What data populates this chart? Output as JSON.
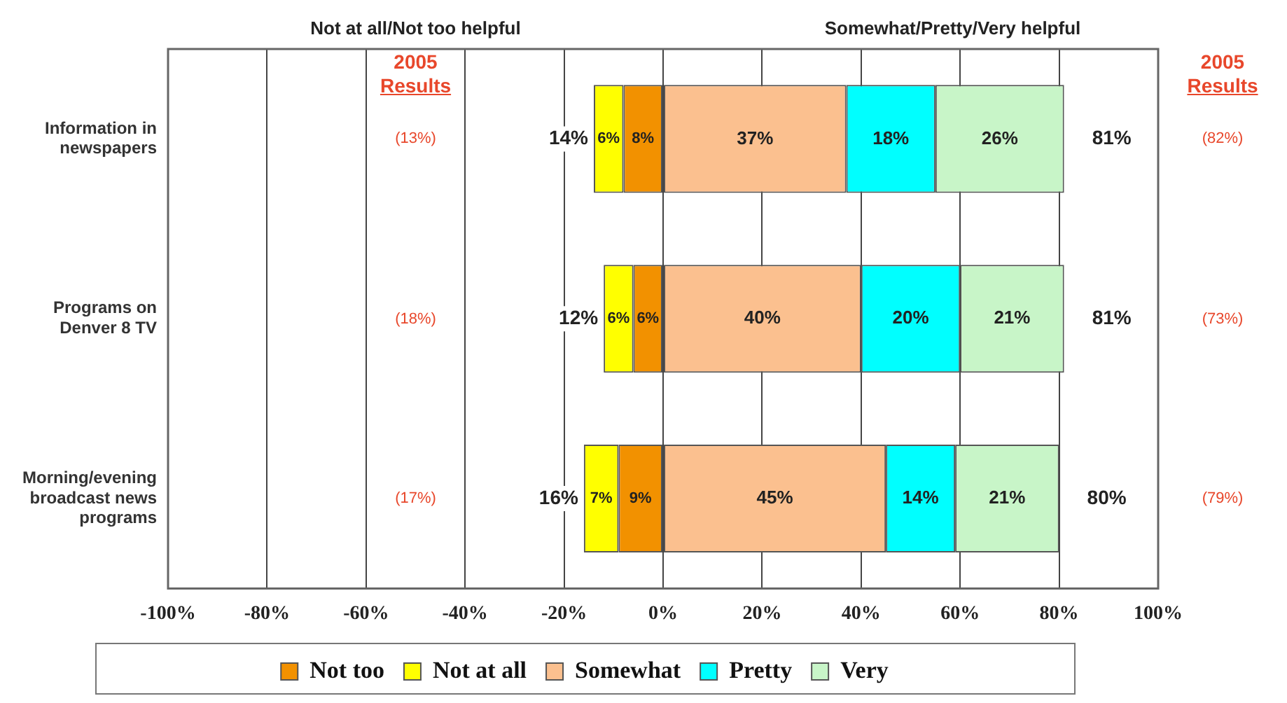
{
  "chart_data": {
    "type": "bar",
    "orientation": "horizontal",
    "categories": [
      "Information in newspapers",
      "Programs on Denver 8 TV",
      "Morning/evening broadcast news programs"
    ],
    "series": [
      {
        "name": "Not too",
        "color": "#f29100",
        "base": [
          -8,
          -6,
          -9
        ],
        "values": [
          8,
          6,
          9
        ],
        "value_labels": [
          "8%",
          "6%",
          "9%"
        ]
      },
      {
        "name": "Not at all",
        "color": "#ffff00",
        "base": [
          -14,
          -12,
          -16
        ],
        "values": [
          6,
          6,
          7
        ],
        "value_labels": [
          "6%",
          "6%",
          "7%"
        ]
      },
      {
        "name": "Somewhat",
        "color": "#fbc08f",
        "base": [
          0,
          0,
          0
        ],
        "values": [
          37,
          40,
          45
        ],
        "value_labels": [
          "37%",
          "40%",
          "45%"
        ]
      },
      {
        "name": "Pretty",
        "color": "#00ffff",
        "base": [
          37,
          40,
          45
        ],
        "values": [
          18,
          20,
          14
        ],
        "value_labels": [
          "18%",
          "20%",
          "14%"
        ]
      },
      {
        "name": "Very",
        "color": "#c8f5c8",
        "base": [
          55,
          60,
          59
        ],
        "values": [
          26,
          21,
          21
        ],
        "value_labels": [
          "26%",
          "21%",
          "21%"
        ]
      }
    ],
    "xlim": [
      -100,
      100
    ],
    "xticks": [
      {
        "value": -100,
        "label": "-100%"
      },
      {
        "value": -80,
        "label": "-80%"
      },
      {
        "value": -60,
        "label": "-60%"
      },
      {
        "value": -40,
        "label": "-40%"
      },
      {
        "value": -20,
        "label": "-20%"
      },
      {
        "value": 0,
        "label": "0%"
      },
      {
        "value": 20,
        "label": "20%"
      },
      {
        "value": 40,
        "label": "40%"
      },
      {
        "value": 60,
        "label": "60%"
      },
      {
        "value": 80,
        "label": "80%"
      },
      {
        "value": 100,
        "label": "100%"
      }
    ],
    "grid": "x",
    "legend": "bottom",
    "annotations": [
      "Not at all/Not too helpful",
      "Somewhat/Pretty/Very helpful",
      "2005 Results",
      "(13%)",
      "(18%)",
      "(17%)",
      "2005 Results",
      "(82%)",
      "(73%)",
      "(79%)",
      {
        "text": "14%",
        "x": -14,
        "y": "Information in newspapers"
      },
      {
        "text": "12%",
        "x": -12,
        "y": "Programs on Denver 8 TV"
      },
      {
        "text": "16%",
        "x": -16,
        "y": "Morning/evening broadcast news programs"
      },
      {
        "text": "81%",
        "x": 81,
        "y": "Information in newspapers"
      },
      {
        "text": "81%",
        "x": 81,
        "y": "Programs on Denver 8 TV"
      },
      {
        "text": "80%",
        "x": 80,
        "y": "Morning/evening broadcast news programs"
      }
    ]
  }
}
